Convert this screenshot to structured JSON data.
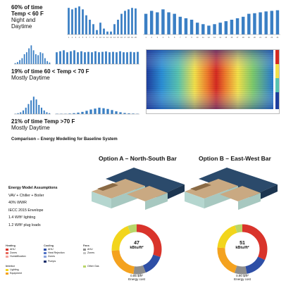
{
  "climate": {
    "cold": {
      "line1": "60% of time",
      "line2": "Temp < 60 F",
      "line3": "Night and",
      "line4": "Daytime"
    },
    "mid": {
      "line1": "19% of time 60 < Temp < 70 F",
      "line2": "Mostly Daytime"
    },
    "hot": {
      "line1": "21% of time Temp >70 F",
      "line2": "Mostly Daytime"
    }
  },
  "charts": {
    "cold_hourly": [
      0.9,
      0.85,
      0.9,
      0.95,
      0.85,
      0.65,
      0.5,
      0.35,
      0.15,
      0.4,
      0.2,
      0.1,
      0.1,
      0.35,
      0.5,
      0.7,
      0.8,
      0.85,
      0.9,
      0.88
    ],
    "cold_hourly_ticks": [
      "1",
      "2",
      "3",
      "4",
      "5",
      "6",
      "7",
      "8",
      "9",
      "10",
      "11",
      "12",
      "13",
      "14",
      "15",
      "16",
      "17",
      "18",
      "19",
      "20"
    ],
    "cold_wide": [
      0.7,
      0.8,
      0.75,
      0.85,
      0.75,
      0.7,
      0.6,
      0.55,
      0.5,
      0.4,
      0.35,
      0.3,
      0.35,
      0.4,
      0.45,
      0.5,
      0.55,
      0.6,
      0.7,
      0.72,
      0.75,
      0.78,
      0.8,
      0.82
    ],
    "cold_wide_ticks": [
      "1",
      "2",
      "3",
      "4",
      "5",
      "6",
      "7",
      "8",
      "9",
      "10",
      "11",
      "12",
      "13",
      "14",
      "15",
      "16",
      "17",
      "18",
      "19",
      "20",
      "21",
      "22",
      "23",
      "24"
    ],
    "mid_small": [
      0.05,
      0.1,
      0.2,
      0.3,
      0.5,
      0.6,
      0.8,
      0.95,
      0.7,
      0.5,
      0.45,
      0.6,
      0.55,
      0.3,
      0.15,
      0.08
    ],
    "mid_wide": [
      0.6,
      0.65,
      0.7,
      0.6,
      0.65,
      0.7,
      0.6,
      0.65,
      0.6,
      0.62,
      0.6,
      0.65,
      0.6,
      0.62,
      0.64,
      0.6,
      0.62,
      0.6,
      0.65,
      0.6,
      0.6,
      0.62,
      0.6,
      0.62
    ],
    "hot_small": [
      0.02,
      0.05,
      0.1,
      0.2,
      0.35,
      0.55,
      0.75,
      0.95,
      0.8,
      0.5,
      0.35,
      0.2,
      0.1,
      0.05
    ],
    "hot_wide": [
      0.02,
      0.02,
      0.02,
      0.03,
      0.05,
      0.08,
      0.12,
      0.18,
      0.25,
      0.3,
      0.35,
      0.32,
      0.28,
      0.22,
      0.15,
      0.1,
      0.06,
      0.04,
      0.03,
      0.02
    ]
  },
  "comparison_title": "Comparison – Energy Modelling for Baseline System",
  "assumptions": {
    "title": "Energy Model Assumptions",
    "items": [
      "VAV + Chiller + Boiler",
      "40% WWR",
      "IECC 2015 Envelope",
      "1.4 W/ft² lighting",
      "1.2 W/ft² plug loads"
    ]
  },
  "option_a": {
    "title": "Option A – North-South Bar",
    "eui": "47",
    "unit": "kBtu/ft²",
    "cost": "0.85 $/ft²",
    "cost_label": "Energy cost"
  },
  "option_b": {
    "title": "Option B – East-West Bar",
    "eui": "51",
    "unit": "kBtu/ft²",
    "cost": "0.90 $/ft²",
    "cost_label": "Energy cost"
  },
  "legend": {
    "heating": {
      "title": "Heating",
      "items": [
        "AHU",
        "Zones",
        "Humidification"
      ]
    },
    "cooling": {
      "title": "Cooling",
      "items": [
        "AHU",
        "Heat Rejection",
        "Zones",
        "Pumps"
      ]
    },
    "fans": {
      "title": "Fans",
      "items": [
        "AHU",
        "Zones"
      ]
    },
    "interior": {
      "title": "Interior",
      "items": [
        "Lighting",
        "Equipment"
      ]
    },
    "other": {
      "items": [
        "Other Gas"
      ]
    }
  },
  "colors": {
    "bar": "#3a7fc4",
    "heating": "#d9342b",
    "cooling": "#2e4fa6",
    "fans": "#8e8e8e",
    "lighting": "#f2d51c",
    "equipment": "#f4a21f",
    "other": "#b9d66a"
  }
}
